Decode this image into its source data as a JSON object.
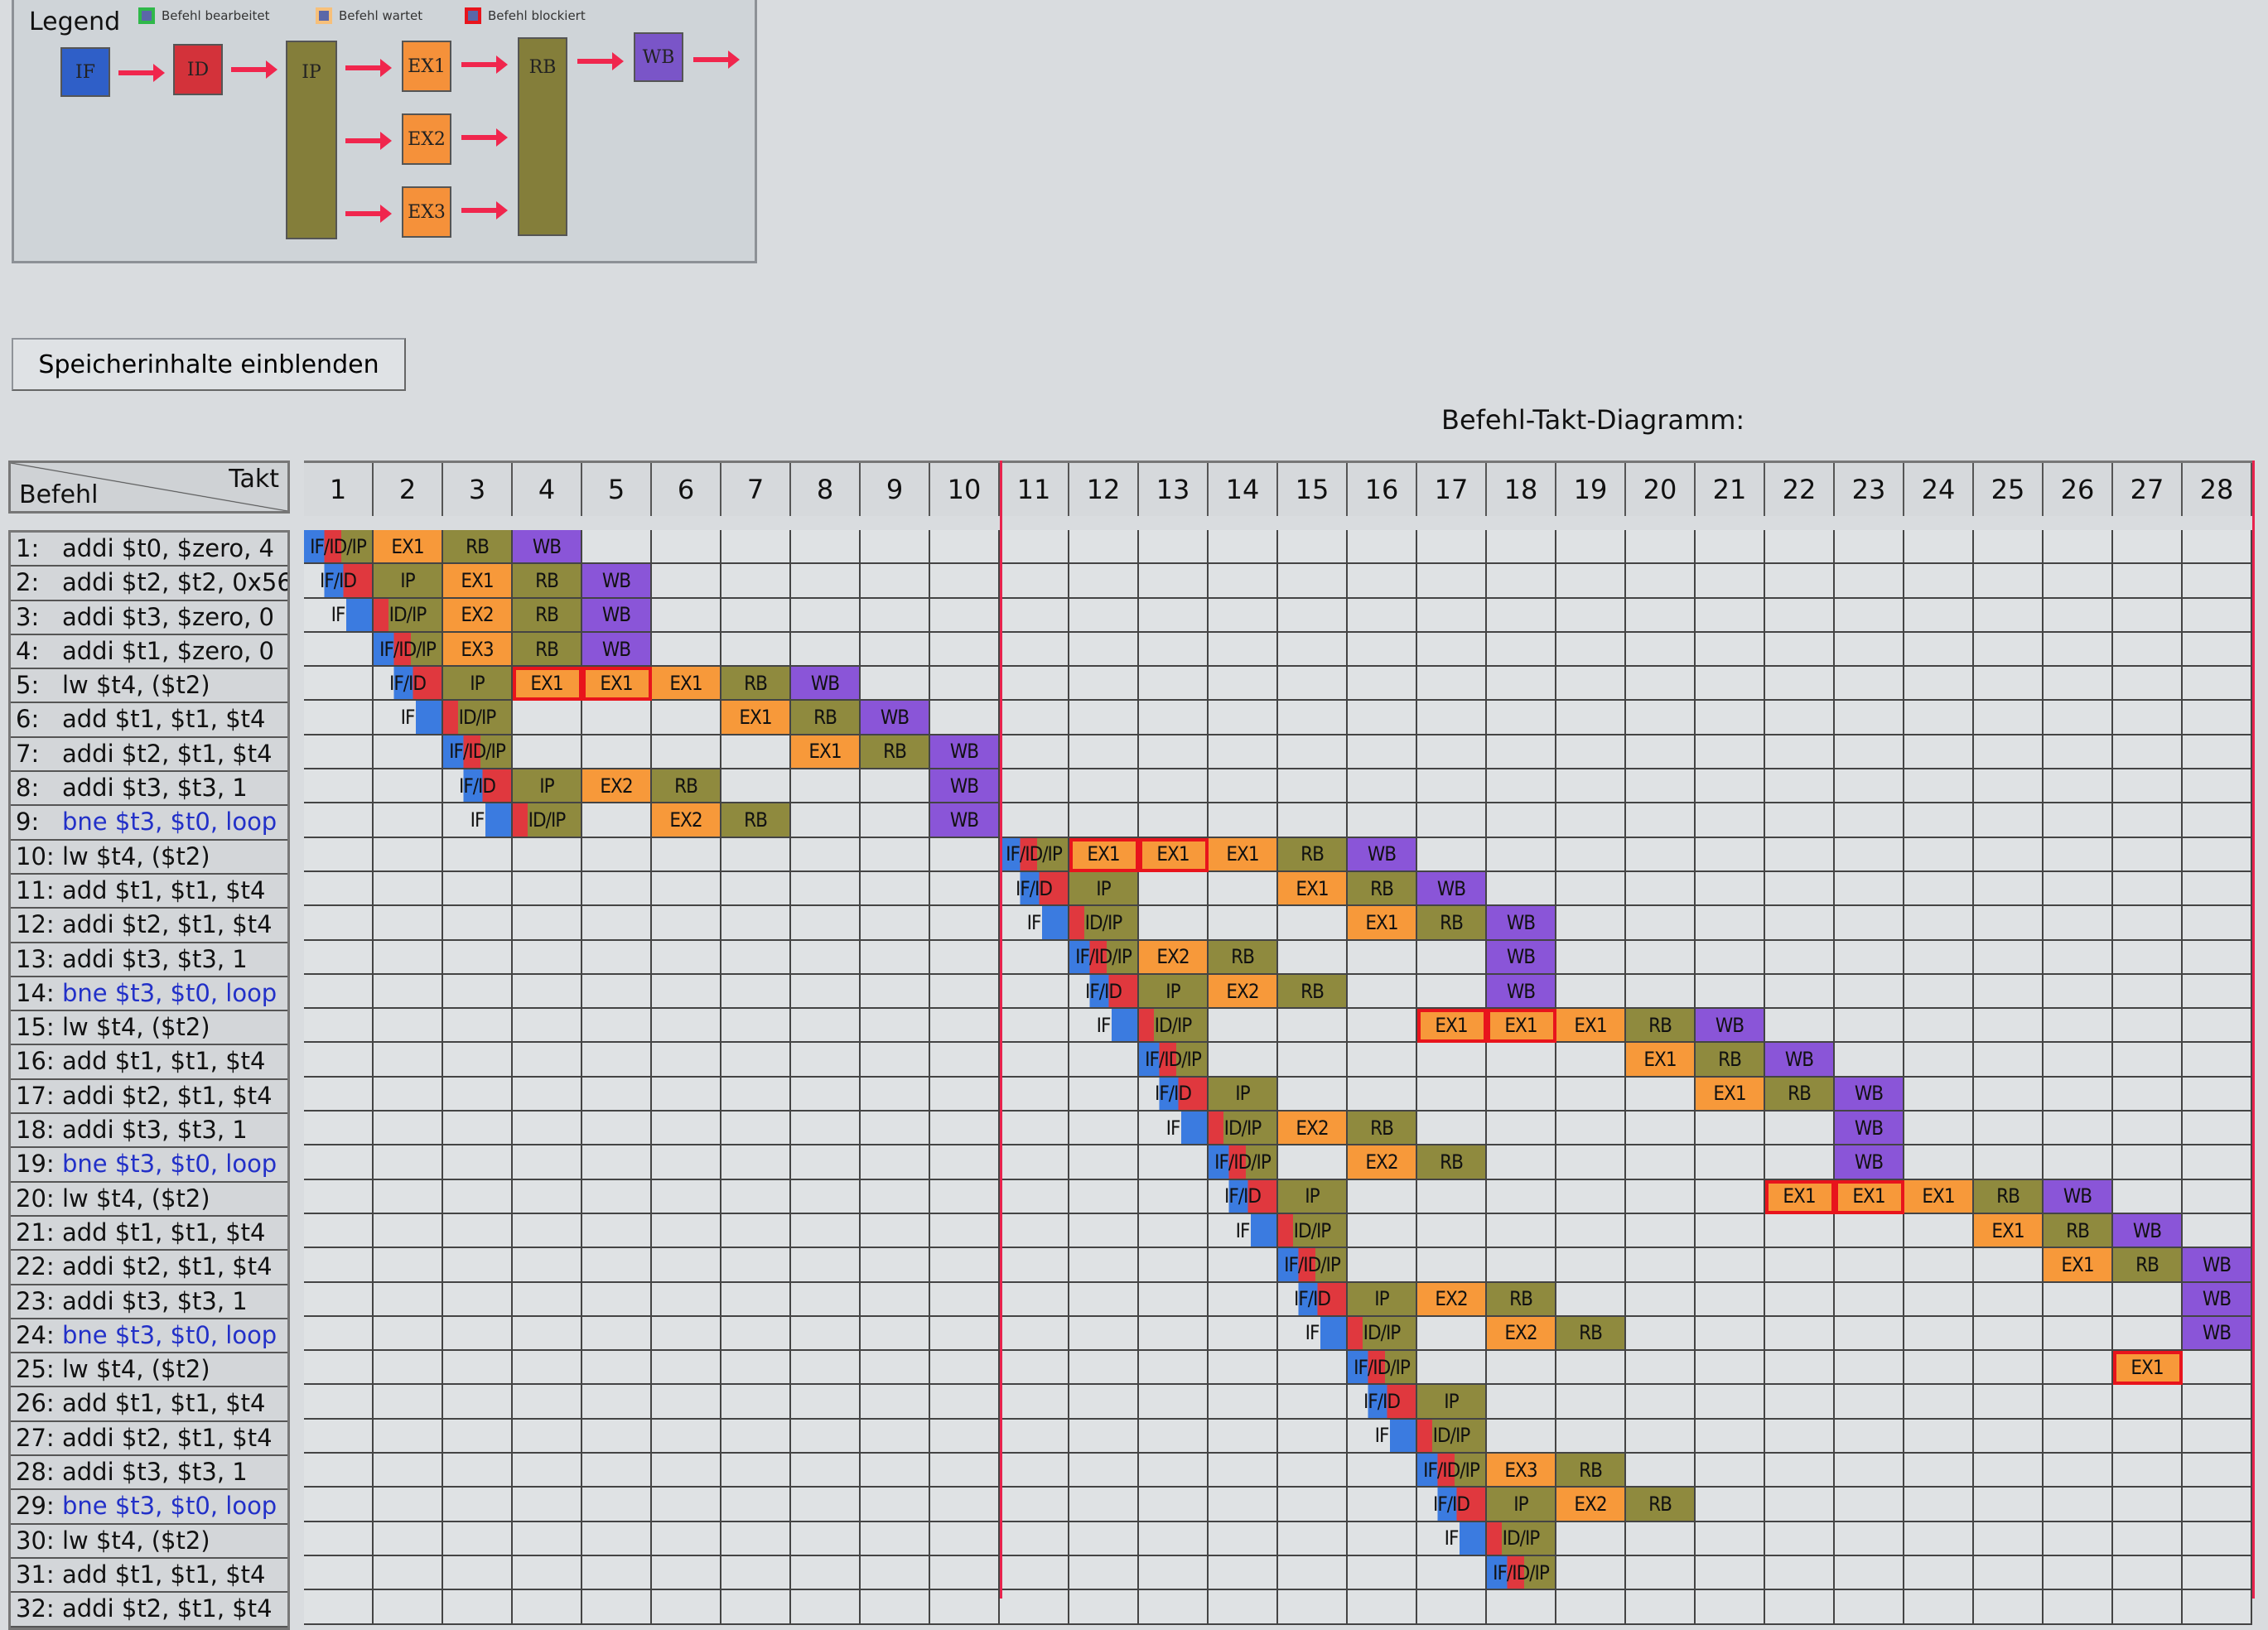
{
  "legend": {
    "title": "Legend",
    "items": [
      {
        "label": "Befehl bearbeitet",
        "color": "#2fb84a"
      },
      {
        "label": "Befehl wartet",
        "color": "#f7993a"
      },
      {
        "label": "Befehl blockiert",
        "color": "#e8141c"
      }
    ],
    "stages": [
      "IF",
      "ID",
      "IP",
      "EX1",
      "EX2",
      "EX3",
      "RB",
      "WB"
    ]
  },
  "toggle_button": "Speicherinhalte einblenden",
  "diagram": {
    "title": "Befehl-Takt-Diagramm:",
    "corner_takt": "Takt",
    "corner_befehl": "Befehl",
    "clocks": [
      "1",
      "2",
      "3",
      "4",
      "5",
      "6",
      "7",
      "8",
      "9",
      "10",
      "11",
      "12",
      "13",
      "14",
      "15",
      "16",
      "17",
      "18",
      "19",
      "20",
      "21",
      "22",
      "23",
      "24",
      "25",
      "26",
      "27",
      "28"
    ],
    "colors": {
      "IF": "#3b7be0",
      "ID": "#e0383e",
      "IP": "#8f8a3e",
      "RB": "#8f8a3e",
      "EX": "#f7993a",
      "WB": "#8a55d8",
      "blocked": "#e8141c",
      "branch_text": "#2230c8"
    },
    "instructions": [
      {
        "num": "1:",
        "text": "addi $t0, $zero, 4",
        "branch": false,
        "stages": [
          [
            1,
            "IF/ID/IP"
          ],
          [
            2,
            "EX1"
          ],
          [
            3,
            "RB"
          ],
          [
            4,
            "WB"
          ]
        ]
      },
      {
        "num": "2:",
        "text": "addi $t2, $t2, 0x56",
        "branch": false,
        "stages": [
          [
            1,
            "IF/ID"
          ],
          [
            2,
            "IP"
          ],
          [
            3,
            "EX1"
          ],
          [
            4,
            "RB"
          ],
          [
            5,
            "WB"
          ]
        ]
      },
      {
        "num": "3:",
        "text": "addi $t3, $zero, 0",
        "branch": false,
        "stages": [
          [
            1,
            "IF"
          ],
          [
            2,
            "ID/IP"
          ],
          [
            3,
            "EX2"
          ],
          [
            4,
            "RB"
          ],
          [
            5,
            "WB"
          ]
        ]
      },
      {
        "num": "4:",
        "text": "addi $t1, $zero, 0",
        "branch": false,
        "stages": [
          [
            2,
            "IF/ID/IP"
          ],
          [
            3,
            "EX3"
          ],
          [
            4,
            "RB"
          ],
          [
            5,
            "WB"
          ]
        ]
      },
      {
        "num": "5:",
        "text": "lw $t4, ($t2)",
        "branch": false,
        "stages": [
          [
            2,
            "IF/ID"
          ],
          [
            3,
            "IP"
          ],
          [
            4,
            "EX1",
            true
          ],
          [
            5,
            "EX1",
            true
          ],
          [
            6,
            "EX1"
          ],
          [
            7,
            "RB"
          ],
          [
            8,
            "WB"
          ]
        ]
      },
      {
        "num": "6:",
        "text": "add $t1, $t1, $t4",
        "branch": false,
        "stages": [
          [
            2,
            "IF"
          ],
          [
            3,
            "ID/IP"
          ],
          [
            7,
            "EX1"
          ],
          [
            8,
            "RB"
          ],
          [
            9,
            "WB"
          ]
        ]
      },
      {
        "num": "7:",
        "text": "addi $t2, $t1, $t4",
        "branch": false,
        "stages": [
          [
            3,
            "IF/ID/IP"
          ],
          [
            8,
            "EX1"
          ],
          [
            9,
            "RB"
          ],
          [
            10,
            "WB"
          ]
        ]
      },
      {
        "num": "8:",
        "text": "addi $t3, $t3, 1",
        "branch": false,
        "stages": [
          [
            3,
            "IF/ID"
          ],
          [
            4,
            "IP"
          ],
          [
            5,
            "EX2"
          ],
          [
            6,
            "RB"
          ],
          [
            10,
            "WB"
          ]
        ]
      },
      {
        "num": "9:",
        "text": "bne $t3, $t0, loop",
        "branch": true,
        "stages": [
          [
            3,
            "IF"
          ],
          [
            4,
            "ID/IP"
          ],
          [
            6,
            "EX2"
          ],
          [
            7,
            "RB"
          ],
          [
            10,
            "WB"
          ]
        ]
      },
      {
        "num": "10:",
        "text": "lw $t4, ($t2)",
        "branch": false,
        "stages": [
          [
            11,
            "IF/ID/IP"
          ],
          [
            12,
            "EX1",
            true
          ],
          [
            13,
            "EX1",
            true
          ],
          [
            14,
            "EX1"
          ],
          [
            15,
            "RB"
          ],
          [
            16,
            "WB"
          ]
        ]
      },
      {
        "num": "11:",
        "text": "add $t1, $t1, $t4",
        "branch": false,
        "stages": [
          [
            11,
            "IF/ID"
          ],
          [
            12,
            "IP"
          ],
          [
            15,
            "EX1"
          ],
          [
            16,
            "RB"
          ],
          [
            17,
            "WB"
          ]
        ]
      },
      {
        "num": "12:",
        "text": "addi $t2, $t1, $t4",
        "branch": false,
        "stages": [
          [
            11,
            "IF"
          ],
          [
            12,
            "ID/IP"
          ],
          [
            16,
            "EX1"
          ],
          [
            17,
            "RB"
          ],
          [
            18,
            "WB"
          ]
        ]
      },
      {
        "num": "13:",
        "text": "addi $t3, $t3, 1",
        "branch": false,
        "stages": [
          [
            12,
            "IF/ID/IP"
          ],
          [
            13,
            "EX2"
          ],
          [
            14,
            "RB"
          ],
          [
            18,
            "WB"
          ]
        ]
      },
      {
        "num": "14:",
        "text": "bne $t3, $t0, loop",
        "branch": true,
        "stages": [
          [
            12,
            "IF/ID"
          ],
          [
            13,
            "IP"
          ],
          [
            14,
            "EX2"
          ],
          [
            15,
            "RB"
          ],
          [
            18,
            "WB"
          ]
        ]
      },
      {
        "num": "15:",
        "text": "lw $t4, ($t2)",
        "branch": false,
        "stages": [
          [
            12,
            "IF"
          ],
          [
            13,
            "ID/IP"
          ],
          [
            17,
            "EX1",
            true
          ],
          [
            18,
            "EX1",
            true
          ],
          [
            19,
            "EX1"
          ],
          [
            20,
            "RB"
          ],
          [
            21,
            "WB"
          ]
        ]
      },
      {
        "num": "16:",
        "text": "add $t1, $t1, $t4",
        "branch": false,
        "stages": [
          [
            13,
            "IF/ID/IP"
          ],
          [
            20,
            "EX1"
          ],
          [
            21,
            "RB"
          ],
          [
            22,
            "WB"
          ]
        ]
      },
      {
        "num": "17:",
        "text": "addi $t2, $t1, $t4",
        "branch": false,
        "stages": [
          [
            13,
            "IF/ID"
          ],
          [
            14,
            "IP"
          ],
          [
            21,
            "EX1"
          ],
          [
            22,
            "RB"
          ],
          [
            23,
            "WB"
          ]
        ]
      },
      {
        "num": "18:",
        "text": "addi $t3, $t3, 1",
        "branch": false,
        "stages": [
          [
            13,
            "IF"
          ],
          [
            14,
            "ID/IP"
          ],
          [
            15,
            "EX2"
          ],
          [
            16,
            "RB"
          ],
          [
            23,
            "WB"
          ]
        ]
      },
      {
        "num": "19:",
        "text": "bne $t3, $t0, loop",
        "branch": true,
        "stages": [
          [
            14,
            "IF/ID/IP"
          ],
          [
            16,
            "EX2"
          ],
          [
            17,
            "RB"
          ],
          [
            23,
            "WB"
          ]
        ]
      },
      {
        "num": "20:",
        "text": "lw $t4, ($t2)",
        "branch": false,
        "stages": [
          [
            14,
            "IF/ID"
          ],
          [
            15,
            "IP"
          ],
          [
            22,
            "EX1",
            true
          ],
          [
            23,
            "EX1",
            true
          ],
          [
            24,
            "EX1"
          ],
          [
            25,
            "RB"
          ],
          [
            26,
            "WB"
          ]
        ]
      },
      {
        "num": "21:",
        "text": "add $t1, $t1, $t4",
        "branch": false,
        "stages": [
          [
            14,
            "IF"
          ],
          [
            15,
            "ID/IP"
          ],
          [
            25,
            "EX1"
          ],
          [
            26,
            "RB"
          ],
          [
            27,
            "WB"
          ]
        ]
      },
      {
        "num": "22:",
        "text": "addi $t2, $t1, $t4",
        "branch": false,
        "stages": [
          [
            15,
            "IF/ID/IP"
          ],
          [
            26,
            "EX1"
          ],
          [
            27,
            "RB"
          ],
          [
            28,
            "WB"
          ]
        ]
      },
      {
        "num": "23:",
        "text": "addi $t3, $t3, 1",
        "branch": false,
        "stages": [
          [
            15,
            "IF/ID"
          ],
          [
            16,
            "IP"
          ],
          [
            17,
            "EX2"
          ],
          [
            18,
            "RB"
          ],
          [
            28,
            "WB"
          ]
        ]
      },
      {
        "num": "24:",
        "text": "bne $t3, $t0, loop",
        "branch": true,
        "stages": [
          [
            15,
            "IF"
          ],
          [
            16,
            "ID/IP"
          ],
          [
            18,
            "EX2"
          ],
          [
            19,
            "RB"
          ],
          [
            28,
            "WB"
          ]
        ]
      },
      {
        "num": "25:",
        "text": "lw $t4, ($t2)",
        "branch": false,
        "stages": [
          [
            16,
            "IF/ID/IP"
          ],
          [
            27,
            "EX1",
            true
          ]
        ]
      },
      {
        "num": "26:",
        "text": "add $t1, $t1, $t4",
        "branch": false,
        "stages": [
          [
            16,
            "IF/ID"
          ],
          [
            17,
            "IP"
          ]
        ]
      },
      {
        "num": "27:",
        "text": "addi $t2, $t1, $t4",
        "branch": false,
        "stages": [
          [
            16,
            "IF"
          ],
          [
            17,
            "ID/IP"
          ]
        ]
      },
      {
        "num": "28:",
        "text": "addi $t3, $t3, 1",
        "branch": false,
        "stages": [
          [
            17,
            "IF/ID/IP"
          ],
          [
            18,
            "EX3"
          ],
          [
            19,
            "RB"
          ]
        ]
      },
      {
        "num": "29:",
        "text": "bne $t3, $t0, loop",
        "branch": true,
        "stages": [
          [
            17,
            "IF/ID"
          ],
          [
            18,
            "IP"
          ],
          [
            19,
            "EX2"
          ],
          [
            20,
            "RB"
          ]
        ]
      },
      {
        "num": "30:",
        "text": "lw $t4, ($t2)",
        "branch": false,
        "stages": [
          [
            17,
            "IF"
          ],
          [
            18,
            "ID/IP"
          ]
        ]
      },
      {
        "num": "31:",
        "text": "add $t1, $t1, $t4",
        "branch": false,
        "stages": [
          [
            18,
            "IF/ID/IP"
          ]
        ]
      },
      {
        "num": "32:",
        "text": "addi $t2, $t1, $t4",
        "branch": false,
        "stages": []
      }
    ]
  }
}
